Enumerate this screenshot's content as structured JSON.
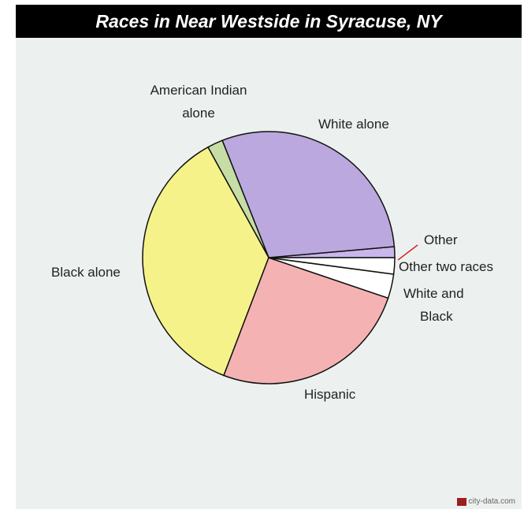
{
  "title": "Races in Near Westside in Syracuse, NY",
  "watermark": "city-data.com",
  "chart_data": {
    "type": "pie",
    "title": "Races in Near Westside in Syracuse, NY",
    "start_angle_deg": 0,
    "direction": "counterclockwise",
    "slices": [
      {
        "label": "Other",
        "value": 1.4,
        "color": "#c8b6ec"
      },
      {
        "label": "White alone",
        "value": 29.6,
        "color": "#baa8df"
      },
      {
        "label": "American Indian alone",
        "value": 2.0,
        "color": "#c6dea6"
      },
      {
        "label": "Black alone",
        "value": 36.2,
        "color": "#f6f28a"
      },
      {
        "label": "Hispanic",
        "value": 25.6,
        "color": "#f5b2b2"
      },
      {
        "label": "White and Black",
        "value": 3.1,
        "color": "#ffffff"
      },
      {
        "label": "Other two races",
        "value": 2.1,
        "color": "#ffffff"
      }
    ],
    "labels_text": {
      "other": "Other",
      "white_alone": "White alone",
      "american_indian_1": "American Indian",
      "american_indian_2": "alone",
      "black_alone": "Black alone",
      "hispanic": "Hispanic",
      "white_and_black_1": "White and",
      "white_and_black_2": "Black",
      "other_two_races": "Other two races"
    }
  }
}
